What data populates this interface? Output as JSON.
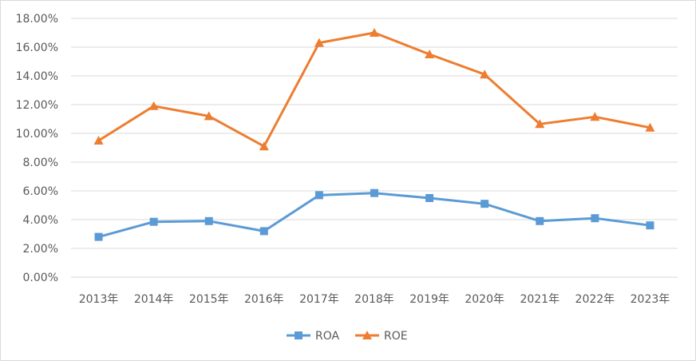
{
  "chart_data": {
    "type": "line",
    "categories": [
      "2013年",
      "2014年",
      "2015年",
      "2016年",
      "2017年",
      "2018年",
      "2019年",
      "2020年",
      "2021年",
      "2022年",
      "2023年"
    ],
    "series": [
      {
        "name": "ROA",
        "values": [
          2.8,
          3.85,
          3.9,
          3.2,
          5.7,
          5.85,
          5.5,
          5.1,
          3.9,
          4.1,
          3.6
        ],
        "color": "#5b9bd5",
        "marker": "square"
      },
      {
        "name": "ROE",
        "values": [
          9.5,
          11.9,
          11.2,
          9.1,
          16.3,
          17.0,
          15.5,
          14.1,
          10.65,
          11.15,
          10.4
        ],
        "color": "#ed7d31",
        "marker": "triangle"
      }
    ],
    "ylim": [
      0,
      18
    ],
    "yticks": [
      0,
      2,
      4,
      6,
      8,
      10,
      12,
      14,
      16,
      18
    ],
    "ytick_labels": [
      "0.00%",
      "2.00%",
      "4.00%",
      "6.00%",
      "8.00%",
      "10.00%",
      "12.00%",
      "14.00%",
      "16.00%",
      "18.00%"
    ],
    "grid": true,
    "legend_position": "bottom-center",
    "title": "",
    "xlabel": "",
    "ylabel": ""
  }
}
